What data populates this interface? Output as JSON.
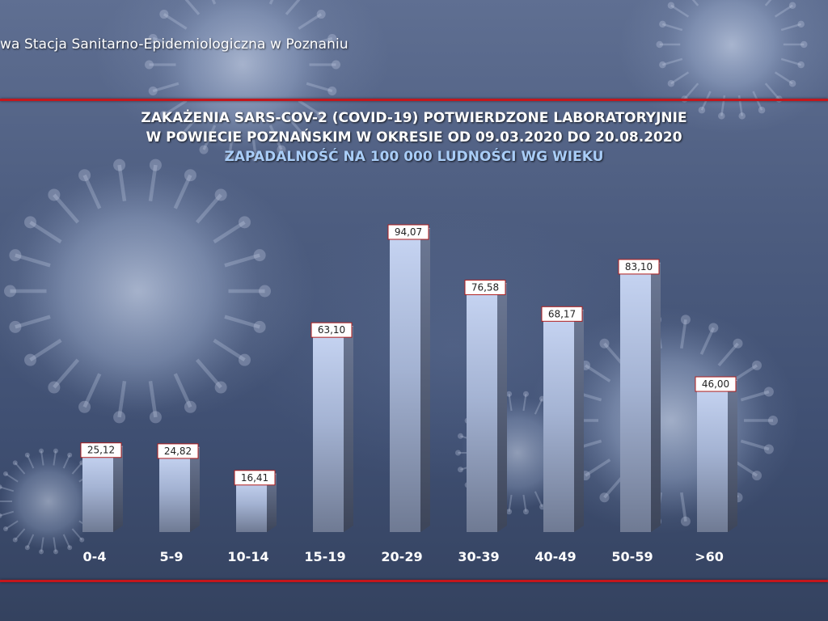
{
  "header": {
    "organization": "wa Stacja Sanitarno-Epidemiologiczna w Poznaniu"
  },
  "colors": {
    "rule": "#c4161c",
    "title": "#ffffff",
    "subtitle": "#a9cdf7",
    "label_border": "#b01c1c"
  },
  "chart_data": {
    "type": "bar",
    "title": "ZAKAŻENIA SARS-COV-2 (COVID-19) POTWIERDZONE LABORATORYJNIE",
    "title_line2": "W POWIECIE POZNAŃSKIM W OKRESIE OD 09.03.2020 DO 20.08.2020",
    "subtitle": "ZAPADALNOŚĆ NA 100 000 LUDNOŚCI WG WIEKU",
    "xlabel": "",
    "ylabel": "",
    "categories": [
      "0-4",
      "5-9",
      "10-14",
      "15-19",
      "20-29",
      "30-39",
      "40-49",
      "50-59",
      ">60"
    ],
    "values": [
      25.12,
      24.82,
      16.41,
      63.1,
      94.07,
      76.58,
      68.17,
      83.1,
      46.0
    ],
    "value_labels": [
      "25,12",
      "24,82",
      "16,41",
      "63,10",
      "94,07",
      "76,58",
      "68,17",
      "83,10",
      "46,00"
    ],
    "ylim": [
      0,
      100
    ],
    "grid": false,
    "legend": "none",
    "bar_style": "3d"
  }
}
